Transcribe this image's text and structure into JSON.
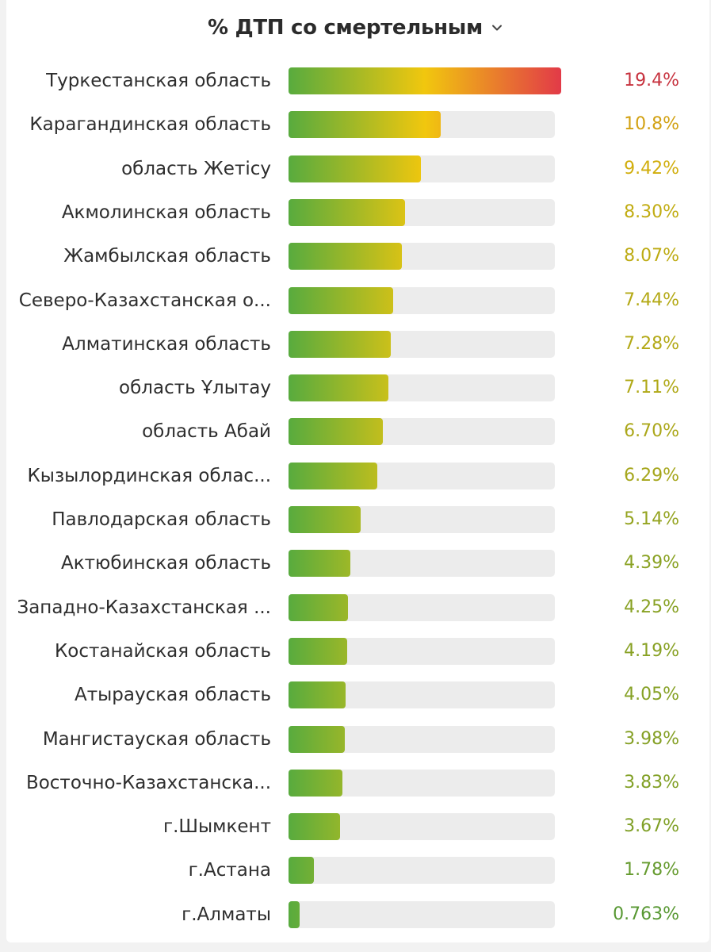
{
  "header": {
    "title": "% ДТП со смертельным"
  },
  "icons": {
    "dropdown": "chevron-down-icon"
  },
  "colors": {
    "green": "#58ab3e",
    "yellow": "#f1c70e",
    "red": "#e23a48",
    "track": "#ececec"
  },
  "chart_data": {
    "type": "bar",
    "orientation": "horizontal",
    "title": "% ДТП со смертельным",
    "max_value": 19.4,
    "categories": [
      "Туркестанская область",
      "Карагандинская область",
      "область Жетісу",
      "Акмолинская область",
      "Жамбылская область",
      "Северо-Казахстанская о...",
      "Алматинская область",
      "область Ұлытау",
      "область Абай",
      "Кызылординская облас...",
      "Павлодарская область",
      "Актюбинская область",
      "Западно-Казахстанская ...",
      "Костанайская область",
      "Атырауская область",
      "Мангистауская область",
      "Восточно-Казахстанска...",
      "г.Шымкент",
      "г.Астана",
      "г.Алматы"
    ],
    "values": [
      19.4,
      10.8,
      9.42,
      8.3,
      8.07,
      7.44,
      7.28,
      7.11,
      6.7,
      6.29,
      5.14,
      4.39,
      4.25,
      4.19,
      4.05,
      3.98,
      3.83,
      3.67,
      1.78,
      0.763
    ],
    "value_labels": [
      "19.4%",
      "10.8%",
      "9.42%",
      "8.30%",
      "8.07%",
      "7.44%",
      "7.28%",
      "7.11%",
      "6.70%",
      "6.29%",
      "5.14%",
      "4.39%",
      "4.25%",
      "4.19%",
      "4.05%",
      "3.98%",
      "3.83%",
      "3.67%",
      "1.78%",
      "0.763%"
    ]
  }
}
